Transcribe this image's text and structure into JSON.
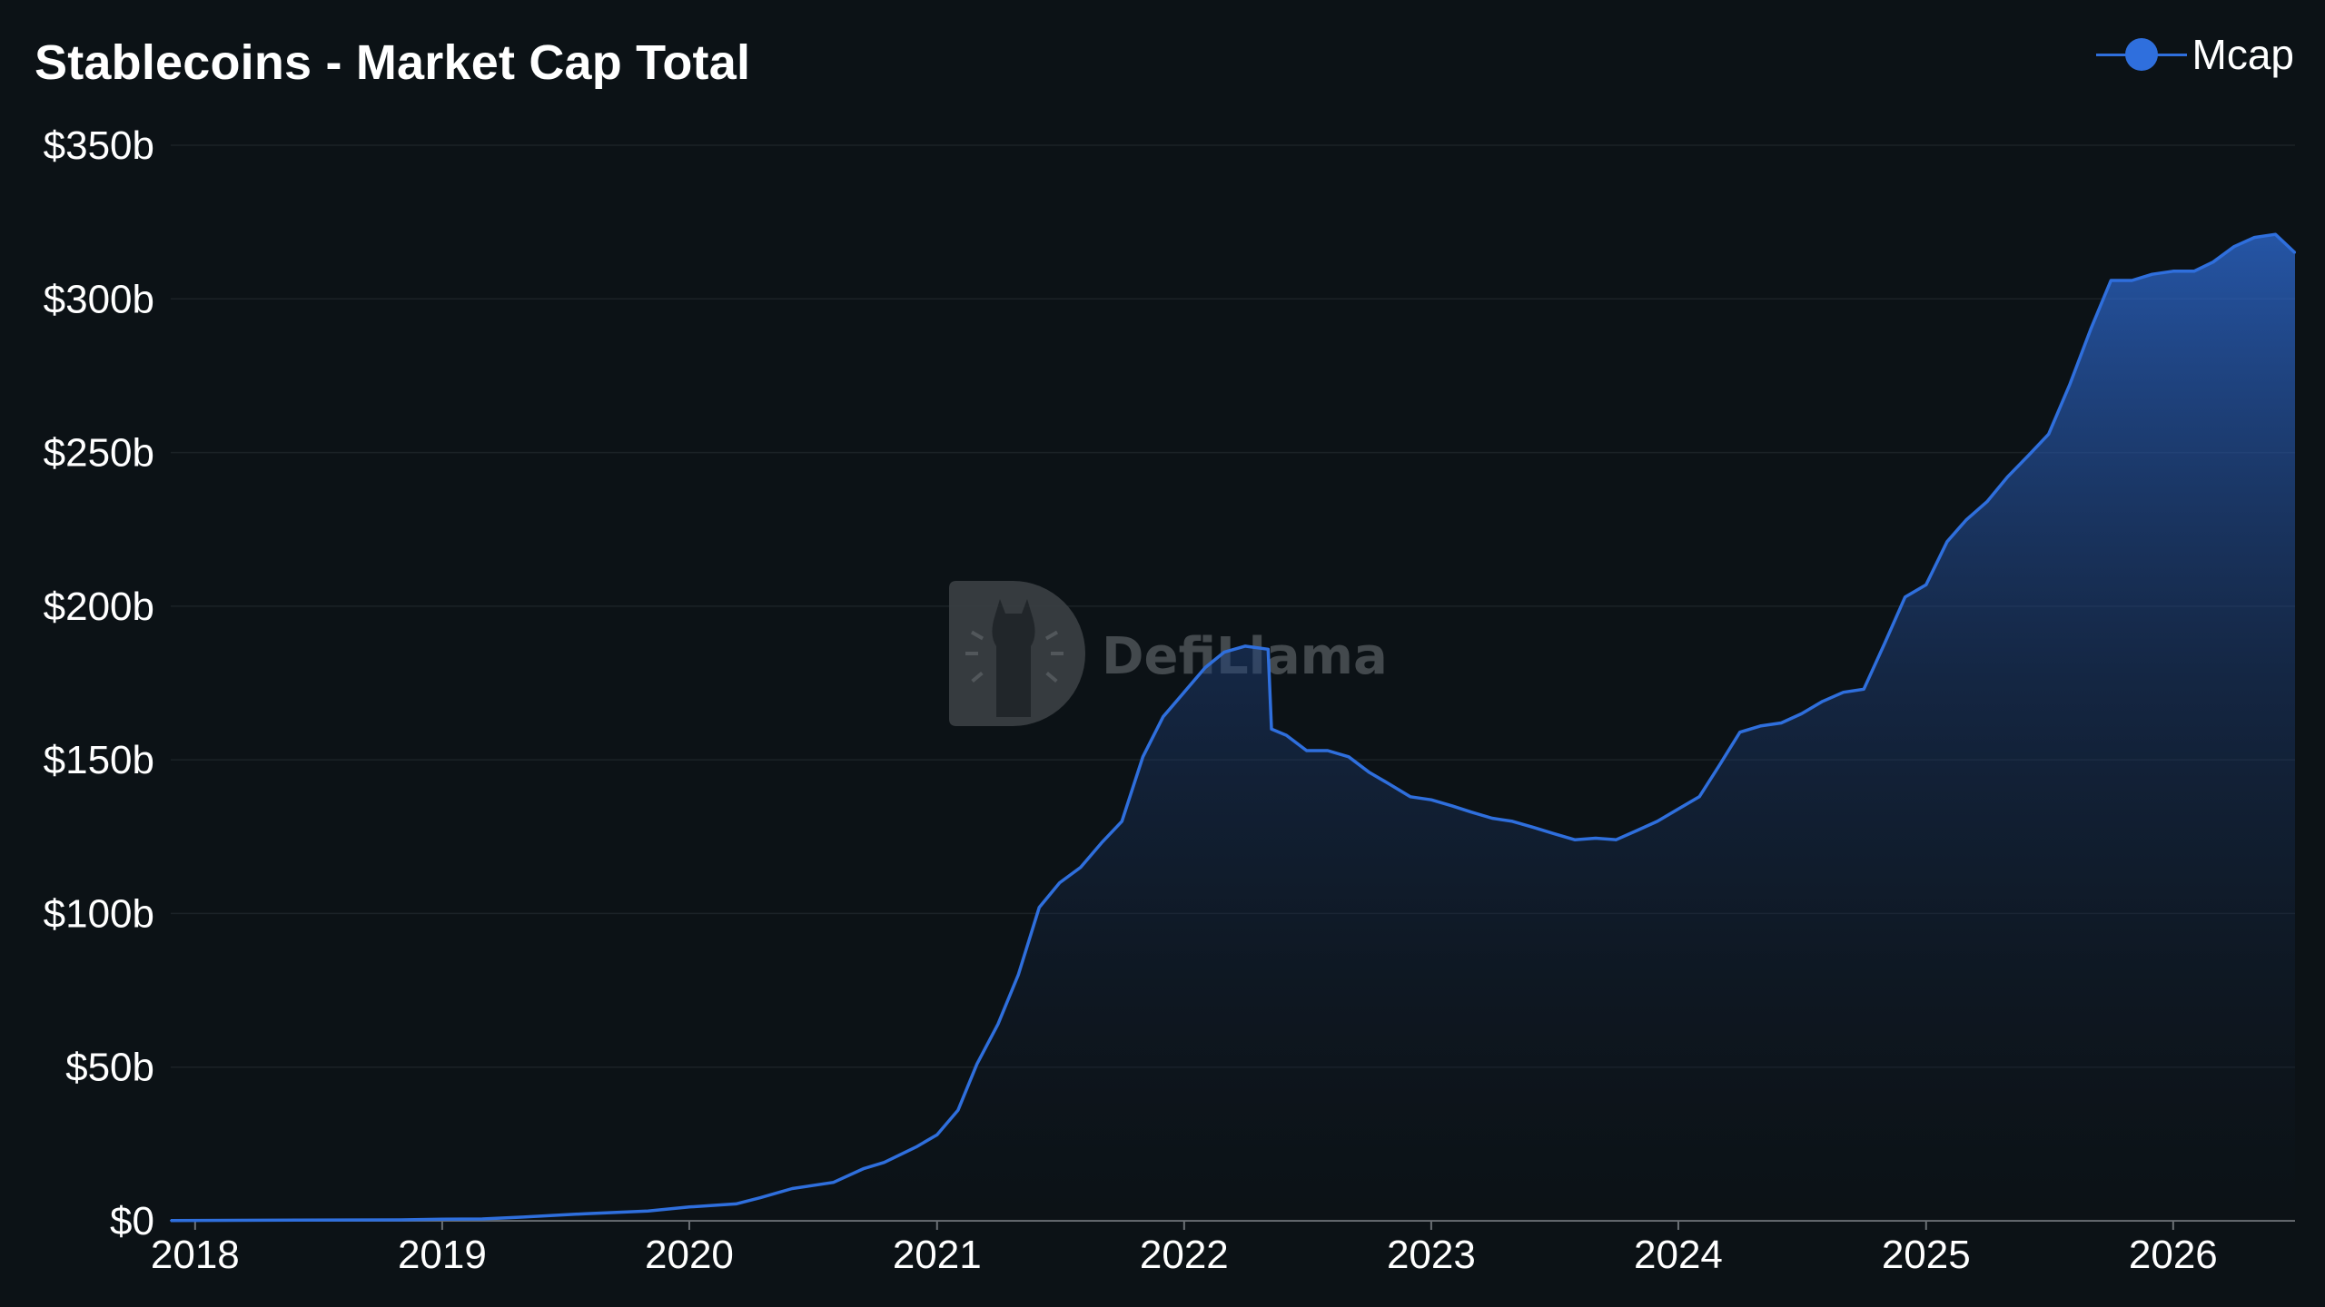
{
  "colors": {
    "background": "#0c1216",
    "series": "#2f6fdd",
    "grid": "#1b2227",
    "text": "#ffffff",
    "watermark": "#4a4f53"
  },
  "watermark": {
    "logo": "defillama-logo-icon"
  },
  "chart_data": {
    "type": "area",
    "title": "Stablecoins - Market Cap Total",
    "xlabel": "",
    "ylabel": "",
    "legend": "top-right",
    "grid": true,
    "ylim": [
      0,
      350
    ],
    "xlim": [
      "2017-11-26",
      "2026-06-30"
    ],
    "yticks": [
      {
        "value": 0,
        "label": "$0"
      },
      {
        "value": 50,
        "label": "$50b"
      },
      {
        "value": 100,
        "label": "$100b"
      },
      {
        "value": 150,
        "label": "$150b"
      },
      {
        "value": 200,
        "label": "$200b"
      },
      {
        "value": 250,
        "label": "$250b"
      },
      {
        "value": 300,
        "label": "$300b"
      },
      {
        "value": 350,
        "label": "$350b"
      }
    ],
    "xticks": [
      {
        "value": "2018-01-01",
        "label": "2018"
      },
      {
        "value": "2019-01-01",
        "label": "2019"
      },
      {
        "value": "2020-01-01",
        "label": "2020"
      },
      {
        "value": "2021-01-01",
        "label": "2021"
      },
      {
        "value": "2022-01-01",
        "label": "2022"
      },
      {
        "value": "2023-01-01",
        "label": "2023"
      },
      {
        "value": "2024-01-01",
        "label": "2024"
      },
      {
        "value": "2025-01-01",
        "label": "2025"
      },
      {
        "value": "2026-01-01",
        "label": "2026"
      }
    ],
    "series": [
      {
        "name": "Mcap",
        "unit": "$b",
        "points": [
          [
            "2017-11-26",
            0.1
          ],
          [
            "2018-06-01",
            0.2
          ],
          [
            "2018-11-01",
            0.3
          ],
          [
            "2019-01-01",
            0.5
          ],
          [
            "2019-03-01",
            0.6
          ],
          [
            "2019-05-01",
            1.2
          ],
          [
            "2019-08-01",
            2.3
          ],
          [
            "2019-11-01",
            3.2
          ],
          [
            "2020-01-01",
            4.5
          ],
          [
            "2020-03-10",
            5.5
          ],
          [
            "2020-04-15",
            7.5
          ],
          [
            "2020-06-01",
            10.5
          ],
          [
            "2020-08-01",
            12.5
          ],
          [
            "2020-09-15",
            17
          ],
          [
            "2020-10-15",
            19
          ],
          [
            "2020-12-01",
            24
          ],
          [
            "2021-01-01",
            28
          ],
          [
            "2021-02-01",
            36
          ],
          [
            "2021-03-01",
            51
          ],
          [
            "2021-04-01",
            64
          ],
          [
            "2021-05-01",
            80
          ],
          [
            "2021-06-01",
            102
          ],
          [
            "2021-07-01",
            110
          ],
          [
            "2021-08-01",
            115
          ],
          [
            "2021-09-01",
            123
          ],
          [
            "2021-10-01",
            130
          ],
          [
            "2021-11-01",
            151
          ],
          [
            "2021-12-01",
            164
          ],
          [
            "2022-01-01",
            172
          ],
          [
            "2022-02-01",
            180
          ],
          [
            "2022-03-01",
            185
          ],
          [
            "2022-04-01",
            187
          ],
          [
            "2022-05-05",
            186
          ],
          [
            "2022-05-10",
            160
          ],
          [
            "2022-06-01",
            158
          ],
          [
            "2022-07-01",
            153
          ],
          [
            "2022-08-01",
            153
          ],
          [
            "2022-09-01",
            151
          ],
          [
            "2022-10-01",
            146
          ],
          [
            "2022-11-01",
            142
          ],
          [
            "2022-12-01",
            138
          ],
          [
            "2023-01-01",
            137
          ],
          [
            "2023-02-01",
            135
          ],
          [
            "2023-03-01",
            133
          ],
          [
            "2023-04-01",
            131
          ],
          [
            "2023-05-01",
            130
          ],
          [
            "2023-06-01",
            128
          ],
          [
            "2023-07-01",
            126
          ],
          [
            "2023-08-01",
            124
          ],
          [
            "2023-09-01",
            124.5
          ],
          [
            "2023-10-01",
            124
          ],
          [
            "2023-11-01",
            127
          ],
          [
            "2023-12-01",
            130
          ],
          [
            "2024-01-01",
            134
          ],
          [
            "2024-02-01",
            138
          ],
          [
            "2024-03-01",
            148
          ],
          [
            "2024-04-01",
            159
          ],
          [
            "2024-05-01",
            161
          ],
          [
            "2024-06-01",
            162
          ],
          [
            "2024-07-01",
            165
          ],
          [
            "2024-08-01",
            169
          ],
          [
            "2024-09-01",
            172
          ],
          [
            "2024-10-01",
            173
          ],
          [
            "2024-11-01",
            188
          ],
          [
            "2024-12-01",
            203
          ],
          [
            "2025-01-01",
            207
          ],
          [
            "2025-02-01",
            221
          ],
          [
            "2025-03-01",
            228
          ],
          [
            "2025-04-01",
            234
          ],
          [
            "2025-05-01",
            242
          ],
          [
            "2025-06-01",
            249
          ],
          [
            "2025-07-01",
            256
          ],
          [
            "2025-08-01",
            272
          ],
          [
            "2025-09-01",
            290
          ],
          [
            "2025-10-01",
            306
          ],
          [
            "2025-11-01",
            306
          ],
          [
            "2025-12-01",
            308
          ],
          [
            "2026-01-01",
            309
          ],
          [
            "2026-02-01",
            309
          ],
          [
            "2026-03-01",
            312
          ],
          [
            "2026-04-01",
            317
          ],
          [
            "2026-05-01",
            320
          ],
          [
            "2026-06-01",
            321
          ],
          [
            "2026-06-30",
            315
          ]
        ]
      }
    ]
  }
}
